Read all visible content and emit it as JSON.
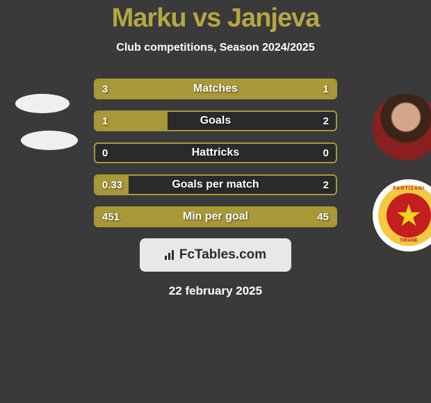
{
  "title": "Marku vs Janjeva",
  "subtitle": "Club competitions, Season 2024/2025",
  "date": "22 february 2025",
  "logo_text": "FcTables.com",
  "colors": {
    "background": "#3a3a3a",
    "accent": "#a89838",
    "title": "#b5a642",
    "bar_bg": "#2a2a2a",
    "text": "#ffffff",
    "logo_bg": "#e8e8e8",
    "badge_outer": "#f5c842",
    "badge_inner": "#c41e1e"
  },
  "stats": [
    {
      "label": "Matches",
      "left_val": "3",
      "right_val": "1",
      "left_pct": 75,
      "right_pct": 25
    },
    {
      "label": "Goals",
      "left_val": "1",
      "right_val": "2",
      "left_pct": 30,
      "right_pct": 0
    },
    {
      "label": "Hattricks",
      "left_val": "0",
      "right_val": "0",
      "left_pct": 0,
      "right_pct": 0
    },
    {
      "label": "Goals per match",
      "left_val": "0.33",
      "right_val": "2",
      "left_pct": 14,
      "right_pct": 0
    },
    {
      "label": "Min per goal",
      "left_val": "451",
      "right_val": "45",
      "left_pct": 75,
      "right_pct": 25
    }
  ],
  "badge": {
    "top_text": "PARTIZANI",
    "bottom_text": "TIRANE"
  }
}
